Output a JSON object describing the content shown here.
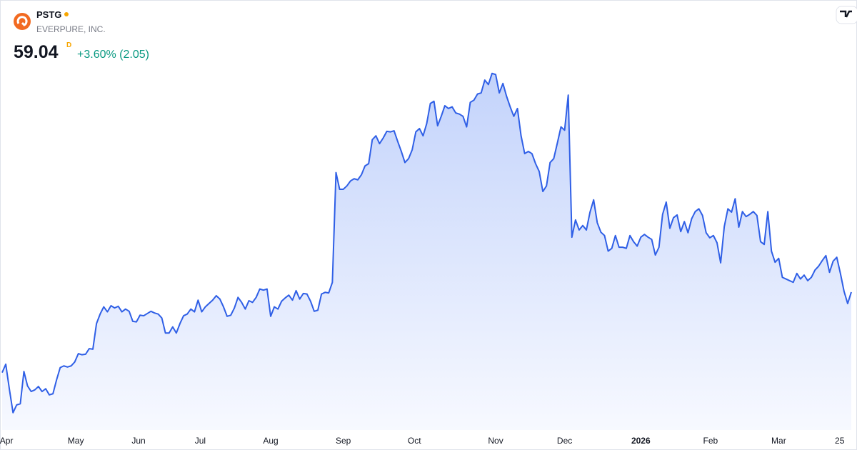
{
  "header": {
    "symbol": "PSTG",
    "company": "EVERPURE, INC.",
    "price": 59.04,
    "price_flag": "D",
    "change": "+3.60% (2.05)"
  },
  "chart_data": {
    "type": "line",
    "color": "#2f5fe6",
    "ylim": [
      30,
      105
    ],
    "xticks": [
      {
        "value": 1.2,
        "label": "Apr"
      },
      {
        "value": 20.3,
        "label": "May"
      },
      {
        "value": 37.6,
        "label": "Jun"
      },
      {
        "value": 54.6,
        "label": "Jul"
      },
      {
        "value": 74,
        "label": "Aug"
      },
      {
        "value": 94,
        "label": "Sep"
      },
      {
        "value": 113.6,
        "label": "Oct"
      },
      {
        "value": 136,
        "label": "Nov"
      },
      {
        "value": 155,
        "label": "Dec"
      },
      {
        "value": 176,
        "label": "2026"
      },
      {
        "value": 195.2,
        "label": "Feb"
      },
      {
        "value": 214,
        "label": "Mar"
      },
      {
        "value": 230.8,
        "label": "25"
      }
    ],
    "values": [
      44.6,
      46.1,
      41.6,
      37.4,
      38.8,
      39.0,
      44.8,
      42.2,
      41.2,
      41.5,
      42.1,
      41.2,
      41.7,
      40.6,
      40.8,
      43.3,
      45.5,
      45.8,
      45.6,
      45.8,
      46.5,
      48.0,
      47.8,
      47.9,
      48.9,
      48.8,
      53.4,
      55.1,
      56.4,
      55.5,
      56.6,
      56.2,
      56.5,
      55.5,
      56.0,
      55.6,
      53.8,
      53.7,
      54.9,
      54.8,
      55.2,
      55.6,
      55.3,
      55.1,
      54.4,
      51.7,
      51.7,
      52.8,
      51.7,
      53.4,
      54.8,
      55.1,
      56.0,
      55.5,
      57.6,
      55.5,
      56.4,
      57.0,
      57.6,
      58.4,
      57.8,
      56.4,
      54.7,
      54.9,
      56.2,
      58.1,
      57.2,
      56.0,
      57.5,
      57.2,
      58.1,
      59.6,
      59.4,
      59.6,
      54.7,
      56.4,
      56.0,
      57.4,
      58.0,
      58.5,
      57.6,
      59.3,
      57.8,
      58.8,
      58.7,
      57.4,
      55.6,
      55.8,
      58.7,
      59.0,
      58.9,
      60.8,
      80.5,
      77.5,
      77.5,
      78.1,
      79.0,
      79.4,
      79.2,
      80.1,
      81.7,
      82.1,
      86.4,
      87.1,
      85.7,
      86.7,
      87.9,
      87.8,
      88.0,
      86.1,
      84.3,
      82.3,
      83.0,
      84.6,
      87.8,
      88.4,
      87.1,
      89.3,
      92.9,
      93.3,
      88.9,
      90.6,
      92.5,
      92.0,
      92.3,
      91.2,
      91.0,
      90.6,
      88.7,
      93.1,
      93.5,
      94.6,
      94.8,
      97.1,
      96.3,
      98.3,
      98.1,
      94.8,
      96.5,
      94.2,
      92.3,
      90.6,
      92.0,
      87.1,
      83.9,
      84.3,
      83.9,
      82.1,
      80.7,
      77.1,
      78.1,
      82.3,
      83.0,
      85.8,
      88.7,
      88.1,
      94.4,
      68.9,
      72.0,
      70.2,
      71.0,
      70.2,
      73.4,
      75.6,
      71.5,
      69.8,
      69.2,
      66.4,
      66.9,
      69.2,
      67.1,
      67.1,
      66.9,
      69.2,
      68.1,
      67.3,
      68.9,
      69.4,
      68.9,
      68.5,
      65.7,
      67.1,
      73.0,
      75.2,
      70.5,
      72.4,
      72.9,
      69.9,
      71.7,
      69.7,
      72.2,
      73.5,
      74.0,
      72.8,
      69.7,
      68.8,
      69.2,
      67.9,
      64.3,
      70.8,
      74.0,
      73.4,
      75.8,
      70.7,
      73.5,
      72.6,
      73.0,
      73.5,
      72.8,
      68.1,
      67.6,
      73.5,
      66.4,
      64.4,
      65.1,
      61.7,
      61.4,
      61.1,
      60.8,
      62.4,
      61.4,
      62.1,
      61.1,
      61.7,
      63.0,
      63.7,
      64.7,
      65.6,
      62.6,
      64.6,
      65.3,
      62.4,
      59.2,
      56.99,
      59.04
    ]
  }
}
